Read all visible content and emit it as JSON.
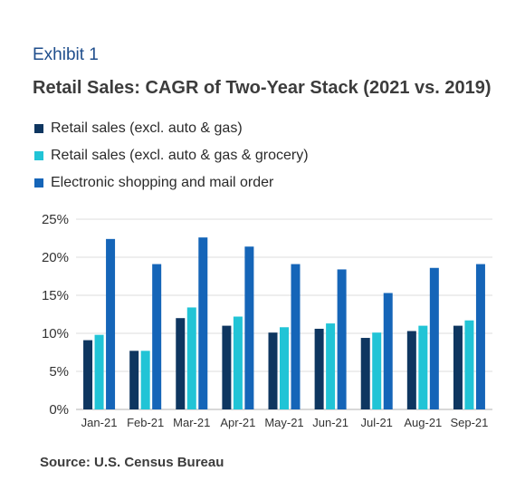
{
  "header": {
    "exhibit": "Exhibit 1",
    "title": "Retail Sales: CAGR of Two-Year Stack (2021 vs. 2019)"
  },
  "source": "Source: U.S. Census Bureau",
  "chart_data": {
    "type": "bar",
    "title": "Retail Sales: CAGR of Two-Year Stack (2021 vs. 2019)",
    "xlabel": "",
    "ylabel": "",
    "categories": [
      "Jan-21",
      "Feb-21",
      "Mar-21",
      "Apr-21",
      "May-21",
      "Jun-21",
      "Jul-21",
      "Aug-21",
      "Sep-21"
    ],
    "series": [
      {
        "name": "Retail sales (excl. auto & gas)",
        "color": "#0e3660",
        "values": [
          9.1,
          7.7,
          12.0,
          11.0,
          10.1,
          10.6,
          9.4,
          10.3,
          11.0
        ]
      },
      {
        "name": "Retail sales (excl. auto & gas & grocery)",
        "color": "#21c4d6",
        "values": [
          9.8,
          7.7,
          13.4,
          12.2,
          10.8,
          11.3,
          10.1,
          11.0,
          11.7
        ]
      },
      {
        "name": "Electronic shopping and mail order",
        "color": "#1565b8",
        "values": [
          22.4,
          19.1,
          22.6,
          21.4,
          19.1,
          18.4,
          15.3,
          18.6,
          19.1
        ]
      }
    ],
    "ylim": [
      0,
      25
    ],
    "yticks": [
      0,
      5,
      10,
      15,
      20,
      25
    ],
    "ytick_labels": [
      "0%",
      "5%",
      "10%",
      "15%",
      "20%",
      "25%"
    ],
    "grid": true,
    "legend_position": "top-left"
  }
}
